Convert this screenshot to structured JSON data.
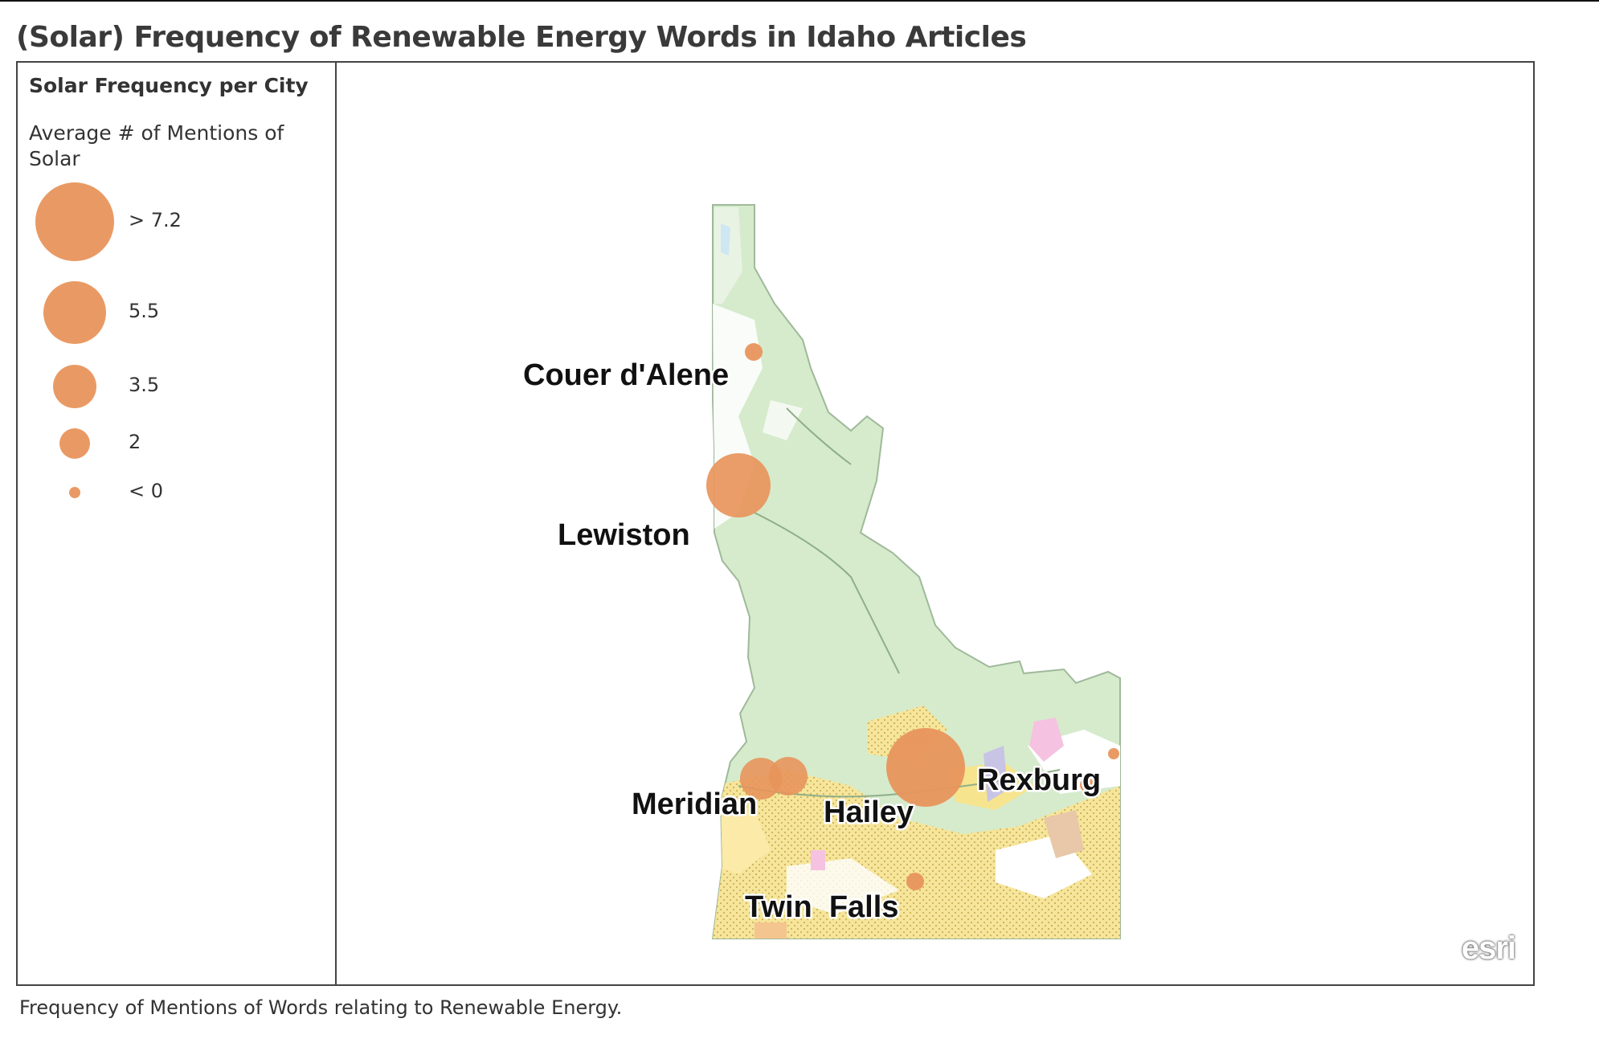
{
  "title": "(Solar) Frequency of Renewable Energy Words in Idaho Articles",
  "legend": {
    "heading": "Solar Frequency per City",
    "subheading": "Average # of Mentions of Solar",
    "items": [
      {
        "label": "> 7.2"
      },
      {
        "label": "5.5"
      },
      {
        "label": "3.5"
      },
      {
        "label": "2"
      },
      {
        "label": "< 0"
      }
    ]
  },
  "map": {
    "region": "Idaho",
    "symbol_color": "#e8955c",
    "cities": [
      {
        "name": "Couer d'Alene",
        "label": "Couer d'Alene"
      },
      {
        "name": "Lewiston",
        "label": "Lewiston"
      },
      {
        "name": "Meridian",
        "label": "Meridian"
      },
      {
        "name": "Hailey",
        "label": "Hailey"
      },
      {
        "name": "Rexburg",
        "label": "Rexburg"
      },
      {
        "name": "Twin Falls",
        "label": "Twin  Falls"
      }
    ]
  },
  "attribution": "esri",
  "caption": "Frequency of Mentions of Words relating to Renewable Energy."
}
